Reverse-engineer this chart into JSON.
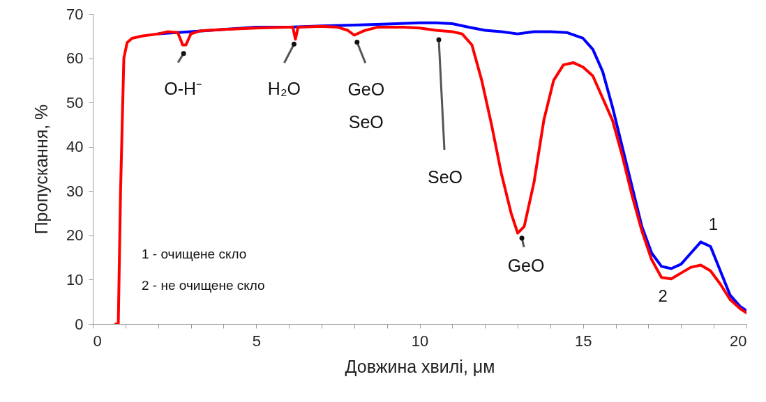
{
  "chart_data": {
    "type": "line",
    "xlabel": "Довжина хвилі, μм",
    "ylabel": "Пропускання, %",
    "xlim": [
      0,
      20
    ],
    "ylim": [
      0,
      70
    ],
    "xticks": [
      0,
      {
        "value": 1,
        "label": null
      },
      {
        "value": 2,
        "label": null
      },
      {
        "value": 3,
        "label": null
      },
      {
        "value": 4,
        "label": null
      },
      5,
      {
        "value": 6,
        "label": null
      },
      {
        "value": 7,
        "label": null
      },
      {
        "value": 8,
        "label": null
      },
      {
        "value": 9,
        "label": null
      },
      10,
      {
        "value": 11,
        "label": null
      },
      {
        "value": 12,
        "label": null
      },
      {
        "value": 13,
        "label": null
      },
      {
        "value": 14,
        "label": null
      },
      15,
      {
        "value": 16,
        "label": null
      },
      {
        "value": 17,
        "label": null
      },
      {
        "value": 18,
        "label": null
      },
      {
        "value": 19,
        "label": null
      },
      20
    ],
    "yticks": [
      0,
      10,
      20,
      30,
      40,
      50,
      60,
      70
    ],
    "grid": false,
    "marker": "none",
    "line_style": "solid",
    "series": [
      {
        "name": "1",
        "color": "#0000ff",
        "x": [
          2,
          3,
          4,
          5,
          6,
          7,
          8,
          9,
          10,
          10.5,
          11,
          11.5,
          12,
          12.5,
          13,
          13.5,
          14,
          14.5,
          15,
          15.3,
          15.6,
          15.9,
          16.2,
          16.5,
          16.8,
          17.1,
          17.4,
          17.7,
          18.0,
          18.3,
          18.6,
          18.9,
          19.2,
          19.5,
          19.8,
          20
        ],
        "values": [
          65.5,
          66,
          66.5,
          67,
          67,
          67.3,
          67.5,
          67.7,
          68,
          68,
          67.8,
          67,
          66.3,
          66,
          65.5,
          66,
          66,
          65.8,
          64.5,
          62,
          57,
          49,
          40,
          31,
          22,
          16,
          13,
          12.5,
          13.5,
          16,
          18.5,
          17.5,
          12,
          6.5,
          4,
          3
        ]
      },
      {
        "name": "2",
        "color": "#ff0000",
        "x": [
          0.7,
          0.78,
          0.85,
          0.95,
          1.05,
          1.2,
          1.5,
          2.0,
          2.3,
          2.6,
          2.75,
          2.85,
          3.0,
          3.3,
          4,
          5,
          6,
          6.12,
          6.2,
          6.28,
          7,
          7.5,
          7.8,
          8.0,
          8.3,
          8.7,
          9.5,
          10,
          10.5,
          11,
          11.3,
          11.6,
          11.9,
          12.2,
          12.5,
          12.8,
          13.0,
          13.2,
          13.5,
          13.8,
          14.1,
          14.4,
          14.7,
          15.0,
          15.3,
          15.6,
          15.9,
          16.2,
          16.5,
          16.8,
          17.1,
          17.4,
          17.7,
          18.0,
          18.3,
          18.6,
          18.9,
          19.2,
          19.5,
          19.8,
          20
        ],
        "values": [
          0,
          0,
          30,
          60,
          63.5,
          64.5,
          65,
          65.5,
          66,
          65.8,
          63,
          63,
          65.5,
          66.2,
          66.5,
          66.8,
          67,
          67,
          64.3,
          67,
          67.2,
          67,
          66.3,
          65.2,
          66.2,
          67,
          67,
          66.8,
          66.3,
          66,
          65.5,
          63,
          55,
          45,
          34,
          25,
          20.5,
          22,
          32,
          46,
          55,
          58.5,
          59,
          58,
          56,
          51,
          46,
          38,
          29,
          21,
          14.5,
          10.5,
          10.2,
          11.5,
          12.8,
          13.3,
          12,
          9,
          5.5,
          3.5,
          2.5
        ]
      }
    ],
    "annotations": [
      {
        "text": "O-H⁻",
        "x": 2.8,
        "y": 62.5
      },
      {
        "text": "H₂O",
        "x": 6.2,
        "y": 64.3
      },
      {
        "text": "GeO\nSeO",
        "x": 8.0,
        "y": 65.2
      },
      "SeO",
      {
        "text": "GeO",
        "x": 13.0,
        "y": 20.5
      },
      "1 - очищене скло",
      "2 - не очищене скло"
    ]
  }
}
